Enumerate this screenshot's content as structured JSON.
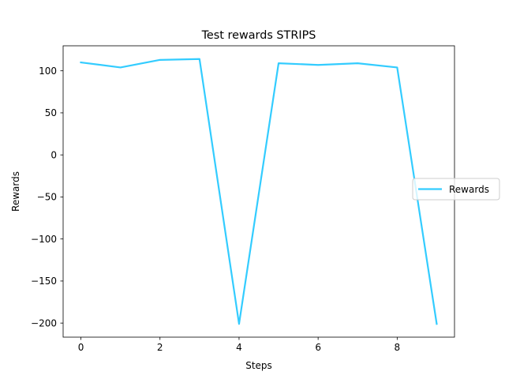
{
  "chart_data": {
    "type": "line",
    "title": "Test rewards STRIPS",
    "xlabel": "Steps",
    "ylabel": "Rewards",
    "x": [
      0,
      1,
      2,
      3,
      4,
      5,
      6,
      7,
      8,
      9
    ],
    "series": [
      {
        "name": "Rewards",
        "color": "#33ccff",
        "values": [
          110,
          104,
          113,
          114,
          -201,
          109,
          107,
          109,
          104,
          -201
        ]
      }
    ],
    "xlim": [
      -0.45,
      9.45
    ],
    "ylim": [
      -216.75,
      129.75
    ],
    "xticks": [
      0,
      2,
      4,
      6,
      8
    ],
    "xtick_labels": [
      "0",
      "2",
      "4",
      "6",
      "8"
    ],
    "yticks": [
      -200,
      -150,
      -100,
      -50,
      0,
      50,
      100
    ],
    "ytick_labels": [
      "−200",
      "−150",
      "−100",
      "−50",
      "0",
      "50",
      "100"
    ],
    "grid": false,
    "legend": {
      "position": "center-right",
      "entries": [
        "Rewards"
      ]
    }
  }
}
